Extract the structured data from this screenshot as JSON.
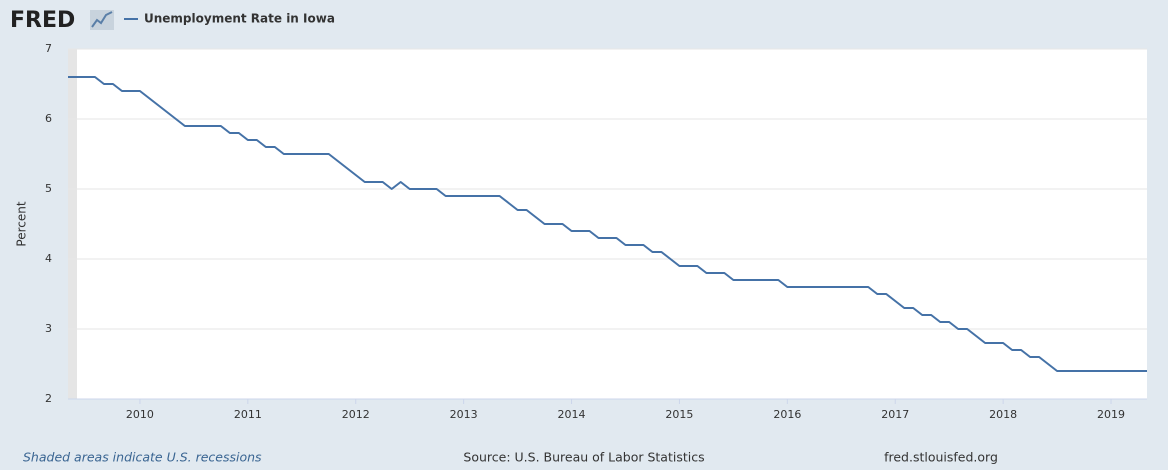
{
  "logo": "FRED",
  "chart_data": {
    "type": "line",
    "title": "Unemployment Rate in Iowa",
    "y_label": "Percent",
    "note": "Shaded areas indicate U.S. recessions",
    "source": "Source: U.S. Bureau of Labor Statistics",
    "site": "fred.stlouisfed.org",
    "grid": true,
    "recessions": [
      [
        "2009-05",
        "2009-06"
      ]
    ],
    "xlim": [
      "2009-05",
      "2019-05"
    ],
    "xticks": [
      2010,
      2011,
      2012,
      2013,
      2014,
      2015,
      2016,
      2017,
      2018,
      2019
    ],
    "ylim": [
      2,
      7
    ],
    "yticks": [
      2,
      3,
      4,
      5,
      6,
      7
    ],
    "x": [
      "2009-05",
      "2009-06",
      "2009-07",
      "2009-08",
      "2009-09",
      "2009-10",
      "2009-11",
      "2009-12",
      "2010-01",
      "2010-02",
      "2010-03",
      "2010-04",
      "2010-05",
      "2010-06",
      "2010-07",
      "2010-08",
      "2010-09",
      "2010-10",
      "2010-11",
      "2010-12",
      "2011-01",
      "2011-02",
      "2011-03",
      "2011-04",
      "2011-05",
      "2011-06",
      "2011-07",
      "2011-08",
      "2011-09",
      "2011-10",
      "2011-11",
      "2011-12",
      "2012-01",
      "2012-02",
      "2012-03",
      "2012-04",
      "2012-05",
      "2012-06",
      "2012-07",
      "2012-08",
      "2012-09",
      "2012-10",
      "2012-11",
      "2012-12",
      "2013-01",
      "2013-02",
      "2013-03",
      "2013-04",
      "2013-05",
      "2013-06",
      "2013-07",
      "2013-08",
      "2013-09",
      "2013-10",
      "2013-11",
      "2013-12",
      "2014-01",
      "2014-02",
      "2014-03",
      "2014-04",
      "2014-05",
      "2014-06",
      "2014-07",
      "2014-08",
      "2014-09",
      "2014-10",
      "2014-11",
      "2014-12",
      "2015-01",
      "2015-02",
      "2015-03",
      "2015-04",
      "2015-05",
      "2015-06",
      "2015-07",
      "2015-08",
      "2015-09",
      "2015-10",
      "2015-11",
      "2015-12",
      "2016-01",
      "2016-02",
      "2016-03",
      "2016-04",
      "2016-05",
      "2016-06",
      "2016-07",
      "2016-08",
      "2016-09",
      "2016-10",
      "2016-11",
      "2016-12",
      "2017-01",
      "2017-02",
      "2017-03",
      "2017-04",
      "2017-05",
      "2017-06",
      "2017-07",
      "2017-08",
      "2017-09",
      "2017-10",
      "2017-11",
      "2017-12",
      "2018-01",
      "2018-02",
      "2018-03",
      "2018-04",
      "2018-05",
      "2018-06",
      "2018-07",
      "2018-08",
      "2018-09",
      "2018-10",
      "2018-11",
      "2018-12",
      "2019-01",
      "2019-02",
      "2019-03",
      "2019-04",
      "2019-05"
    ],
    "series": [
      {
        "name": "Unemployment Rate in Iowa",
        "color": "#4572a7",
        "values": [
          6.6,
          6.6,
          6.6,
          6.6,
          6.5,
          6.5,
          6.4,
          6.4,
          6.4,
          6.3,
          6.2,
          6.1,
          6.0,
          5.9,
          5.9,
          5.9,
          5.9,
          5.9,
          5.8,
          5.8,
          5.7,
          5.7,
          5.6,
          5.6,
          5.5,
          5.5,
          5.5,
          5.5,
          5.5,
          5.5,
          5.4,
          5.3,
          5.2,
          5.1,
          5.1,
          5.1,
          5.0,
          5.1,
          5.0,
          5.0,
          5.0,
          5.0,
          4.9,
          4.9,
          4.9,
          4.9,
          4.9,
          4.9,
          4.9,
          4.8,
          4.7,
          4.7,
          4.6,
          4.5,
          4.5,
          4.5,
          4.4,
          4.4,
          4.4,
          4.3,
          4.3,
          4.3,
          4.2,
          4.2,
          4.2,
          4.1,
          4.1,
          4.0,
          3.9,
          3.9,
          3.9,
          3.8,
          3.8,
          3.8,
          3.7,
          3.7,
          3.7,
          3.7,
          3.7,
          3.7,
          3.6,
          3.6,
          3.6,
          3.6,
          3.6,
          3.6,
          3.6,
          3.6,
          3.6,
          3.6,
          3.5,
          3.5,
          3.4,
          3.3,
          3.3,
          3.2,
          3.2,
          3.1,
          3.1,
          3.0,
          3.0,
          2.9,
          2.8,
          2.8,
          2.8,
          2.7,
          2.7,
          2.6,
          2.6,
          2.5,
          2.4,
          2.4,
          2.4,
          2.4,
          2.4,
          2.4,
          2.4,
          2.4,
          2.4,
          2.4,
          2.4
        ]
      }
    ]
  }
}
